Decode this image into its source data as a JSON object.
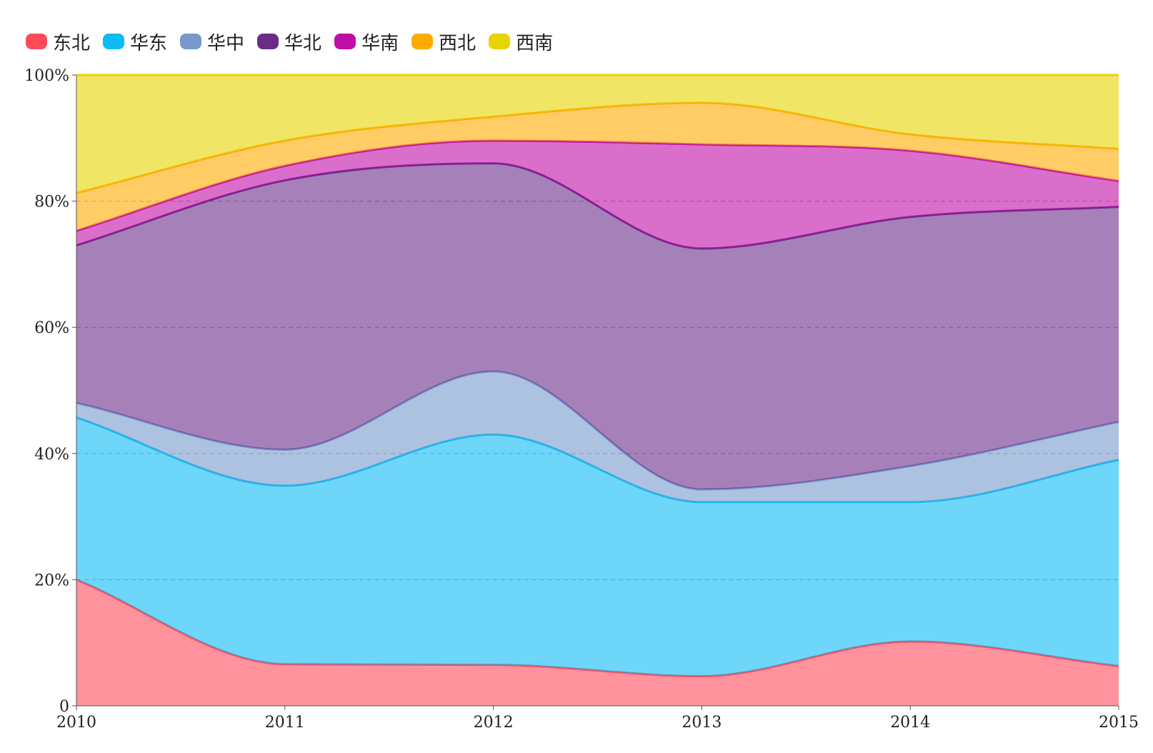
{
  "chart_data": {
    "type": "area",
    "stacked_percent": true,
    "x": [
      "2010",
      "2011",
      "2012",
      "2013",
      "2014",
      "2015"
    ],
    "yticks": [
      "0",
      "20%",
      "40%",
      "60%",
      "80%",
      "100%"
    ],
    "ylim": [
      0,
      100
    ],
    "grid": "horizontal-dashed",
    "legend_position": "top-left",
    "series": [
      {
        "name": "东北",
        "color": "#ff4a5a",
        "values": [
          20.0,
          6.6,
          6.5,
          4.7,
          10.2,
          6.3
        ]
      },
      {
        "name": "华东",
        "color": "#0dbbf5",
        "values": [
          25.7,
          28.3,
          36.5,
          27.6,
          22.1,
          32.7
        ]
      },
      {
        "name": "华中",
        "color": "#7799cc",
        "values": [
          2.3,
          5.7,
          10.0,
          2.0,
          5.7,
          6.0
        ]
      },
      {
        "name": "华北",
        "color": "#6a2c88",
        "values": [
          25.0,
          42.7,
          33.0,
          38.2,
          39.5,
          34.1
        ]
      },
      {
        "name": "华南",
        "color": "#c10da8",
        "values": [
          2.3,
          2.3,
          3.6,
          16.5,
          10.5,
          4.1
        ]
      },
      {
        "name": "西北",
        "color": "#ffaa00",
        "values": [
          6.0,
          4.0,
          3.8,
          6.6,
          2.6,
          5.1
        ]
      },
      {
        "name": "西南",
        "color": "#e8d400",
        "values": [
          18.7,
          10.4,
          6.6,
          4.4,
          9.4,
          11.7
        ]
      }
    ]
  }
}
